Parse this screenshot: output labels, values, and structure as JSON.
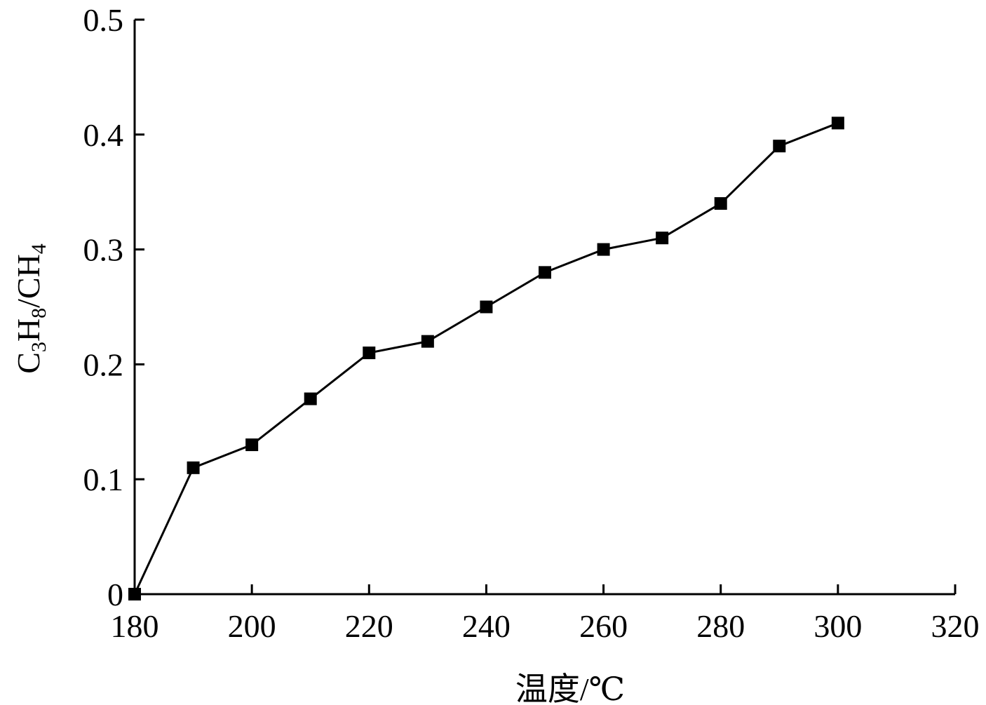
{
  "chart_data": {
    "type": "line",
    "title": "",
    "xlabel": "温度/℃",
    "ylabel": {
      "parts": [
        {
          "text": "C",
          "sub": false
        },
        {
          "text": "3",
          "sub": true
        },
        {
          "text": "H",
          "sub": false
        },
        {
          "text": "8",
          "sub": true
        },
        {
          "text": "/CH",
          "sub": false
        },
        {
          "text": "4",
          "sub": true
        }
      ]
    },
    "xlim": [
      180,
      320
    ],
    "ylim": [
      0,
      0.5
    ],
    "xticks": [
      "180",
      "200",
      "220",
      "240",
      "260",
      "280",
      "300",
      "320"
    ],
    "yticks": [
      "0",
      "0.1",
      "0.2",
      "0.3",
      "0.4",
      "0.5"
    ],
    "grid": false,
    "series": [
      {
        "marker": "square",
        "color": "#000000",
        "x": [
          180,
          190,
          200,
          210,
          220,
          230,
          240,
          250,
          260,
          270,
          280,
          290,
          300
        ],
        "y": [
          0,
          0.11,
          0.13,
          0.17,
          0.21,
          0.22,
          0.25,
          0.28,
          0.3,
          0.31,
          0.34,
          0.39,
          0.41
        ]
      }
    ]
  }
}
